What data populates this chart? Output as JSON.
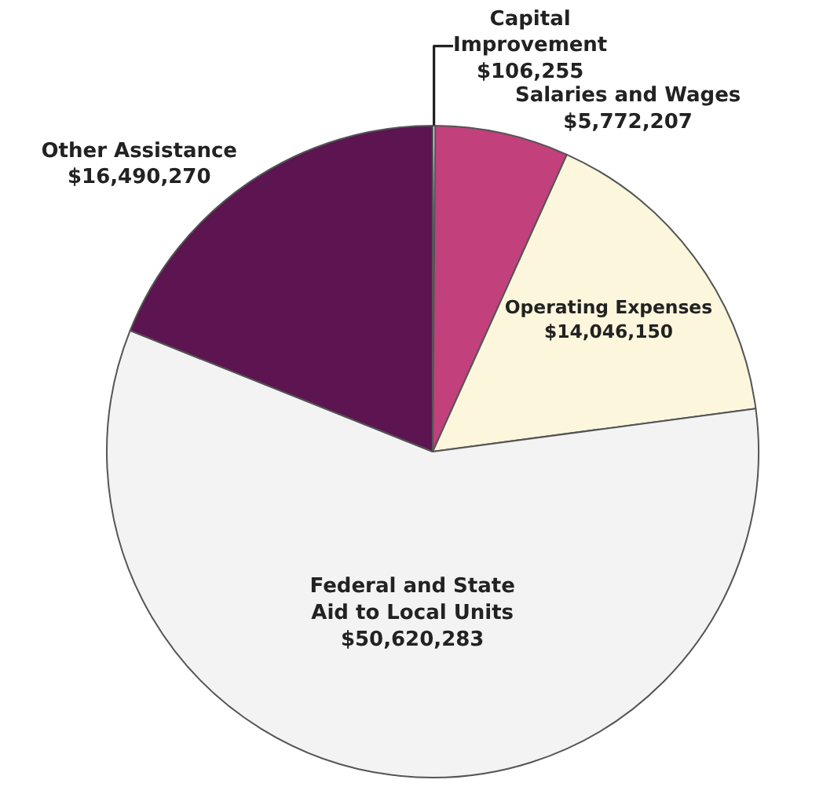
{
  "chart_data": {
    "type": "pie",
    "categories": [
      "Capital Improvement",
      "Salaries and Wages",
      "Operating Expenses",
      "Federal and State Aid to Local Units",
      "Other Assistance"
    ],
    "values": [
      106255,
      5772207,
      14046150,
      50620283,
      16490270
    ],
    "colors": [
      "#fafafa",
      "#c2407c",
      "#fbf6dc",
      "#f3f3f3",
      "#5c1551"
    ],
    "value_labels": [
      "$106,255",
      "$5,772,207",
      "$14,046,150",
      "$50,620,283",
      "$16,490,270"
    ],
    "legend": false
  }
}
